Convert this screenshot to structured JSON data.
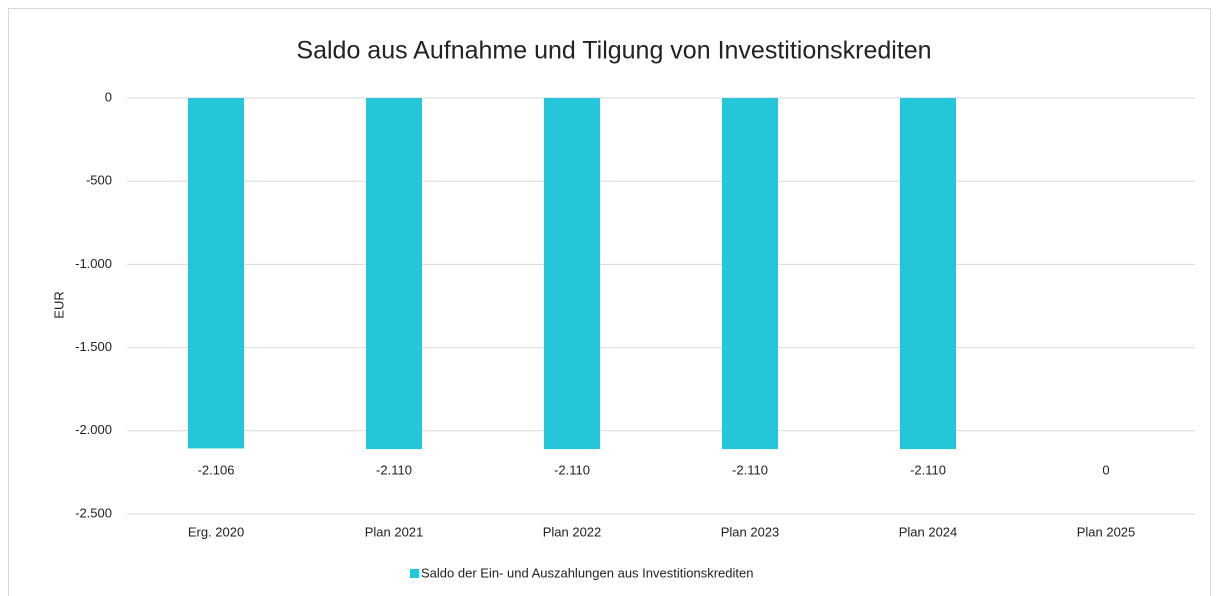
{
  "chart_data": {
    "type": "bar",
    "title": "Saldo aus Aufnahme und Tilgung von Investitionskrediten",
    "y_label": "EUR",
    "categories": [
      "Erg. 2020",
      "Plan 2021",
      "Plan 2022",
      "Plan 2023",
      "Plan 2024",
      "Plan 2025"
    ],
    "series": [
      {
        "name": "Saldo der Ein- und Auszahlungen aus Investitionskrediten",
        "color": "#26c6da",
        "values": [
          -2106,
          -2110,
          -2110,
          -2110,
          -2110,
          0
        ],
        "value_labels": [
          "-2.106",
          "-2.110",
          "-2.110",
          "-2.110",
          "-2.110",
          "0"
        ]
      }
    ],
    "ylim": [
      -2500,
      0
    ],
    "yticks": [
      0,
      {
        "value": -500,
        "label": "-500"
      },
      {
        "value": -1000,
        "label": "-1.000"
      },
      {
        "value": -1500,
        "label": "-1.500"
      },
      {
        "value": -2000,
        "label": "-2.000"
      },
      {
        "value": -2500,
        "label": "-2.500"
      }
    ],
    "grid": true,
    "legend": "bottom"
  }
}
